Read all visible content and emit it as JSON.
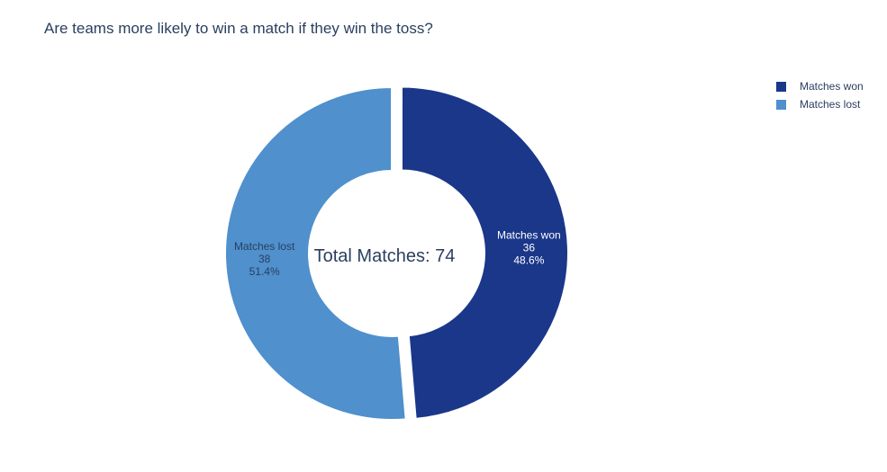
{
  "chart_data": {
    "type": "pie",
    "title": "Are teams more likely to win a match if they win the toss?",
    "hole": true,
    "center_label": "Total Matches: 74",
    "slices": [
      {
        "label": "Matches won",
        "value": 36,
        "percent": "48.6%",
        "color": "#1a378a",
        "text_color": "#ffffff",
        "pulled": true
      },
      {
        "label": "Matches lost",
        "value": 38,
        "percent": "51.4%",
        "color": "#4f90cd",
        "text_color": "#2a3f5f",
        "pulled": false
      }
    ],
    "legend_position": "top-right"
  }
}
